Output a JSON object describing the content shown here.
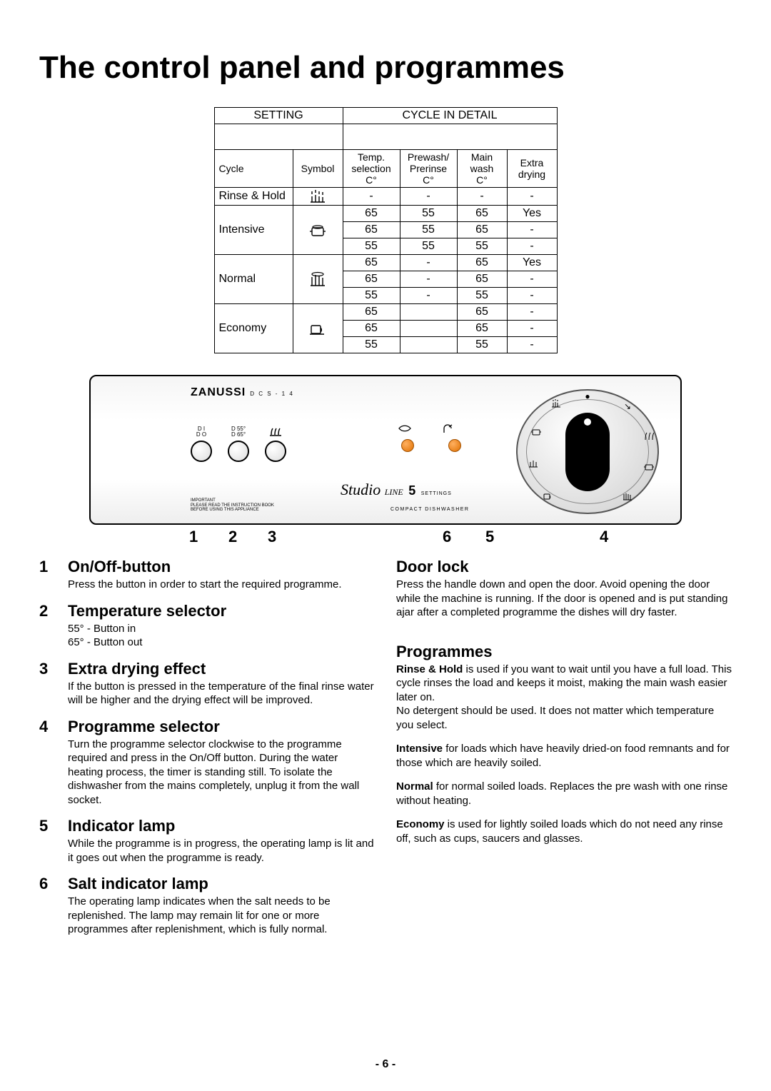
{
  "page": {
    "title": "The control panel and programmes",
    "footer": "- 6 -"
  },
  "table": {
    "setting_hdr": "SETTING",
    "cycle_hdr": "CYCLE IN DETAIL",
    "col_cycle": "Cycle",
    "col_symbol": "Symbol",
    "col_temp": "Temp.\nselection\nC°",
    "col_prewash": "Prewash/\nPrerinse\nC°",
    "col_main": "Main\nwash\nC°",
    "col_extra": "Extra\ndrying",
    "rows": [
      {
        "cycle": "Rinse & Hold",
        "span": 1,
        "data": [
          [
            "-",
            "-",
            "-",
            "-"
          ]
        ]
      },
      {
        "cycle": "Intensive",
        "span": 3,
        "data": [
          [
            "65",
            "55",
            "65",
            "Yes"
          ],
          [
            "65",
            "55",
            "65",
            "-"
          ],
          [
            "55",
            "55",
            "55",
            "-"
          ]
        ]
      },
      {
        "cycle": "Normal",
        "span": 3,
        "data": [
          [
            "65",
            "-",
            "65",
            "Yes"
          ],
          [
            "65",
            "-",
            "65",
            "-"
          ],
          [
            "55",
            "-",
            "55",
            "-"
          ]
        ]
      },
      {
        "cycle": "Economy",
        "span": 3,
        "data": [
          [
            "65",
            "",
            "65",
            "-"
          ],
          [
            "65",
            "",
            "65",
            "-"
          ],
          [
            "55",
            "",
            "55",
            "-"
          ]
        ]
      }
    ]
  },
  "panel": {
    "brand": "ZANUSSI",
    "model": "D C S - 1 4",
    "studio_a": "Studio",
    "studio_b": "LINE",
    "five": "5",
    "settings": "SETTINGS",
    "compact": "COMPACT DISHWASHER",
    "important": "IMPORTANT\nPLEASE READ THE INSTRUCTION BOOK\nBEFORE USING THIS APPLIANCE",
    "knob1": "D I\nD O",
    "knob2": "D 55°\nD 65°",
    "callouts": {
      "c1": "1",
      "c2": "2",
      "c3": "3",
      "c4": "4",
      "c5": "5",
      "c6": "6"
    }
  },
  "left_items": [
    {
      "n": "1",
      "h": "On/Off-button",
      "p": "Press the button in order to start the required programme."
    },
    {
      "n": "2",
      "h": "Temperature selector",
      "p": "55°  - Button in\n65°  - Button out"
    },
    {
      "n": "3",
      "h": "Extra drying effect",
      "p": "If the button is pressed in the temperature of the final rinse water will be higher and the drying effect will be improved."
    },
    {
      "n": "4",
      "h": "Programme selector",
      "p": "Turn the programme selector clockwise to the programme required and press in the On/Off button. During the water heating process, the timer is standing still. To isolate the dishwasher from the mains completely, unplug it from the wall socket."
    },
    {
      "n": "5",
      "h": "Indicator lamp",
      "p": "While the programme is in progress, the operating lamp is lit and it goes out when the programme is ready."
    },
    {
      "n": "6",
      "h": "Salt indicator lamp",
      "p": "The operating lamp indicates when the salt needs to be replenished. The lamp may remain lit for one or more programmes after replenishment, which is fully normal."
    }
  ],
  "right": {
    "doorlock_h": "Door lock",
    "doorlock_p": "Press the handle down and open the door. Avoid opening the door while the machine is running. If the door is opened and is put standing ajar after a completed programme the dishes will dry faster.",
    "prog_h": "Programmes",
    "rinse_b": "Rinse & Hold",
    "rinse_t": " is used if you want to wait until you have a full load. This cycle rinses the load and keeps it moist, making the main wash easier later on.",
    "rinse_t2": "No detergent should be used. It does not matter which temperature you select.",
    "int_b": "Intensive",
    "int_t": " for loads which have heavily dried-on food remnants and for those which are heavily soiled.",
    "nor_b": "Normal",
    "nor_t": " for normal soiled loads. Replaces the pre wash with one rinse without heating.",
    "eco_b": "Economy",
    "eco_t": " is used for lightly soiled loads which do not need any rinse off, such as cups, saucers and glasses."
  }
}
